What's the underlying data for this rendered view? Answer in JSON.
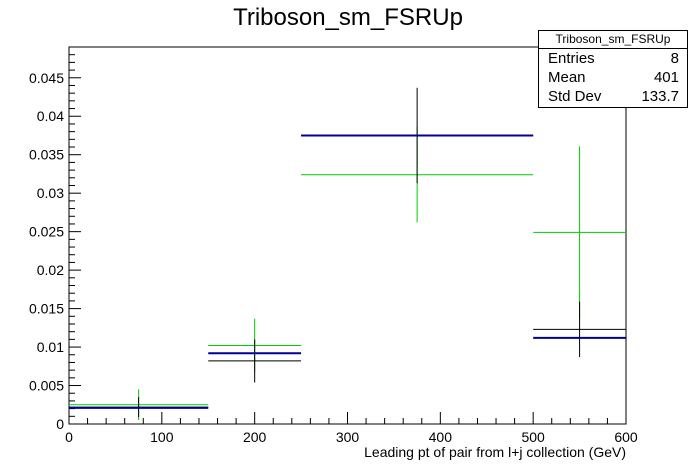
{
  "chart_data": {
    "type": "histogram",
    "title": "Triboson_sm_FSRUp",
    "xlabel": "Leading pt of pair from l+j collection (GeV)",
    "ylabel": "",
    "xlim": [
      0,
      600
    ],
    "ylim": [
      0,
      0.049
    ],
    "xticks": [
      0,
      100,
      200,
      300,
      400,
      500,
      600
    ],
    "yticks": [
      0,
      0.005,
      0.01,
      0.015,
      0.02,
      0.025,
      0.03,
      0.035,
      0.04,
      0.045
    ],
    "ytick_labels": [
      "0",
      "0.005",
      "0.01",
      "0.015",
      "0.02",
      "0.025",
      "0.03",
      "0.035",
      "0.04",
      "0.045"
    ],
    "bin_edges": [
      0,
      150,
      250,
      500,
      600
    ],
    "bin_centers": [
      75,
      200,
      375,
      550
    ],
    "series": [
      {
        "color": "#00cc00",
        "values": [
          0.0025,
          0.0102,
          0.0324,
          0.0249
        ],
        "errors": [
          0.002,
          0.0035,
          0.0062,
          0.0112
        ]
      },
      {
        "color": "#000000",
        "values": [
          0.0022,
          0.0082,
          0.0375,
          0.0123
        ],
        "errors": [
          0.0013,
          0.0028,
          0.0062,
          0.0036
        ]
      },
      {
        "color": "#000099",
        "values": [
          0.0021,
          0.0092,
          0.0375,
          0.0112
        ],
        "errors": [
          0.0,
          0.0,
          0.0,
          0.0
        ]
      }
    ],
    "legend": "none",
    "grid": false
  },
  "stats_box": {
    "name": "Triboson_sm_FSRUp",
    "rows": [
      {
        "label": "Entries",
        "value": "8"
      },
      {
        "label": "Mean",
        "value": "401"
      },
      {
        "label": "Std Dev",
        "value": "133.7"
      }
    ]
  }
}
